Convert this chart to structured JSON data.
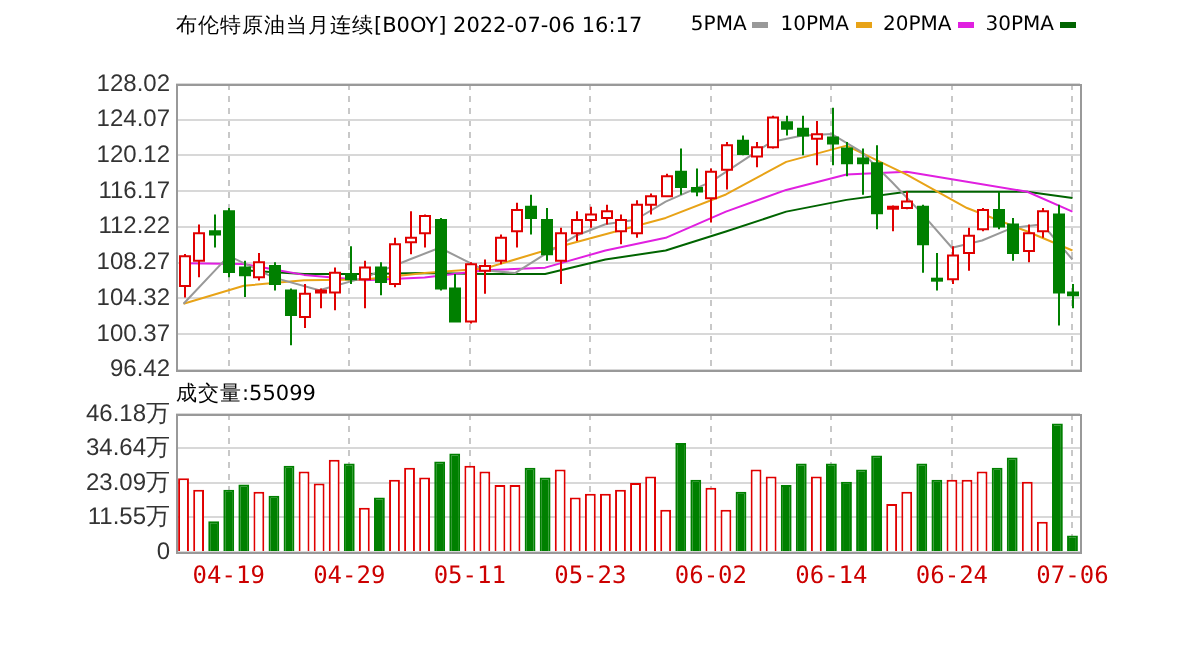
{
  "chart_data": [
    {
      "type": "candlestick",
      "title": "布伦特原油当月连续[B0OY] 2022-07-06 16:17",
      "categories": [
        null,
        null,
        null,
        null,
        null,
        null,
        null,
        null,
        null,
        null,
        null,
        null,
        null,
        null,
        null,
        null,
        null,
        null,
        null,
        null,
        null,
        null,
        null,
        null,
        null,
        null,
        null,
        null,
        null,
        null,
        null,
        null,
        null,
        null,
        null,
        null,
        null,
        null,
        null,
        null,
        null,
        null,
        null,
        null,
        null,
        null,
        null,
        null,
        null,
        null,
        null,
        null,
        null,
        null,
        null,
        null,
        null,
        null,
        null,
        null
      ],
      "ohlc": [
        [
          105.68,
          109.2,
          104.4,
          108.97
        ],
        [
          108.45,
          112.47,
          106.63,
          111.52
        ],
        [
          111.74,
          113.57,
          109.92,
          111.38
        ],
        [
          113.93,
          114.3,
          106.63,
          107.22
        ],
        [
          107.73,
          108.45,
          104.44,
          106.85
        ],
        [
          106.63,
          109.33,
          106.27,
          108.31
        ],
        [
          107.87,
          108.31,
          105.17,
          105.9
        ],
        [
          105.17,
          105.39,
          99.11,
          102.47
        ],
        [
          102.25,
          105.9,
          101.01,
          104.81
        ],
        [
          104.96,
          105.39,
          103.2,
          105.17
        ],
        [
          104.95,
          107.73,
          102.98,
          107.14
        ],
        [
          107.0,
          110.06,
          105.9,
          106.41
        ],
        [
          106.41,
          108.45,
          103.2,
          107.73
        ],
        [
          107.73,
          108.31,
          104.66,
          106.12
        ],
        [
          105.9,
          111.01,
          105.54,
          110.28
        ],
        [
          110.5,
          113.93,
          109.19,
          111.01
        ],
        [
          111.52,
          113.57,
          109.92,
          113.42
        ],
        [
          112.98,
          113.2,
          105.17,
          105.39
        ],
        [
          105.39,
          107.0,
          101.74,
          101.74
        ],
        [
          101.74,
          108.31,
          101.52,
          108.09
        ],
        [
          107.36,
          108.6,
          104.81,
          107.87
        ],
        [
          108.45,
          111.38,
          108.09,
          111.01
        ],
        [
          111.74,
          114.88,
          109.92,
          114.08
        ],
        [
          114.44,
          115.76,
          111.38,
          113.2
        ],
        [
          112.98,
          114.3,
          108.45,
          109.19
        ],
        [
          108.45,
          112.11,
          105.9,
          111.52
        ],
        [
          111.52,
          113.93,
          110.65,
          112.98
        ],
        [
          112.98,
          114.44,
          112.11,
          113.57
        ],
        [
          113.2,
          114.66,
          112.47,
          113.93
        ],
        [
          111.74,
          113.57,
          110.28,
          112.98
        ],
        [
          111.52,
          115.17,
          111.01,
          114.66
        ],
        [
          114.66,
          115.9,
          113.57,
          115.61
        ],
        [
          115.61,
          118.09,
          115.61,
          117.8
        ],
        [
          118.31,
          120.87,
          115.76,
          116.63
        ],
        [
          116.5,
          118.68,
          115.61,
          116.12
        ],
        [
          115.39,
          118.68,
          112.69,
          118.31
        ],
        [
          118.53,
          121.6,
          116.34,
          121.23
        ],
        [
          121.74,
          122.33,
          120.14,
          120.28
        ],
        [
          119.99,
          121.6,
          118.82,
          121.01
        ],
        [
          121.01,
          124.52,
          120.87,
          124.3
        ],
        [
          123.79,
          124.52,
          122.33,
          123.06
        ],
        [
          123.06,
          124.52,
          120.14,
          122.33
        ],
        [
          121.96,
          123.93,
          119.04,
          122.47
        ],
        [
          122.11,
          125.39,
          119.04,
          121.45
        ],
        [
          120.87,
          121.6,
          117.8,
          119.26
        ],
        [
          119.77,
          120.87,
          115.76,
          119.26
        ],
        [
          119.26,
          121.23,
          111.96,
          113.71
        ],
        [
          114.22,
          114.59,
          111.74,
          114.44
        ],
        [
          114.3,
          116.12,
          114.15,
          115.03
        ],
        [
          114.44,
          114.66,
          107.14,
          110.28
        ],
        [
          106.48,
          109.33,
          105.17,
          106.34
        ],
        [
          106.41,
          110.06,
          105.9,
          109.04
        ],
        [
          109.33,
          112.11,
          107.36,
          111.23
        ],
        [
          111.96,
          114.3,
          111.74,
          114.08
        ],
        [
          114.08,
          116.12,
          111.96,
          112.25
        ],
        [
          112.47,
          113.2,
          108.45,
          109.33
        ],
        [
          109.55,
          112.47,
          108.31,
          111.52
        ],
        [
          111.74,
          114.3,
          111.01,
          113.93
        ],
        [
          113.57,
          114.66,
          101.3,
          104.95
        ],
        [
          104.95,
          105.9,
          103.2,
          104.66
        ]
      ],
      "colors": [
        "#e00000",
        "#e00000",
        "#008000",
        "#008000",
        "#008000",
        "#e00000",
        "#008000",
        "#008000",
        "#e00000",
        "#e00000",
        "#e00000",
        "#008000",
        "#e00000",
        "#008000",
        "#e00000",
        "#e00000",
        "#e00000",
        "#008000",
        "#008000",
        "#e00000",
        "#e00000",
        "#e00000",
        "#e00000",
        "#008000",
        "#008000",
        "#e00000",
        "#e00000",
        "#e00000",
        "#e00000",
        "#e00000",
        "#e00000",
        "#e00000",
        "#e00000",
        "#008000",
        "#008000",
        "#e00000",
        "#e00000",
        "#008000",
        "#e00000",
        "#e00000",
        "#008000",
        "#008000",
        "#e00000",
        "#008000",
        "#008000",
        "#008000",
        "#008000",
        "#e00000",
        "#e00000",
        "#008000",
        "#008000",
        "#e00000",
        "#e00000",
        "#e00000",
        "#008000",
        "#008000",
        "#e00000",
        "#e00000",
        "#008000",
        "#008000"
      ],
      "series": [
        {
          "name": "5PMA",
          "type": "line",
          "color": "#999999",
          "values": [
            103.7,
            null,
            null,
            109.0,
            null,
            null,
            106.6,
            null,
            null,
            105.2,
            null,
            null,
            106.6,
            null,
            null,
            108.6,
            null,
            109.9,
            null,
            null,
            107.4,
            null,
            107.1,
            null,
            109.2,
            null,
            111.2,
            null,
            112.5,
            null,
            113.0,
            null,
            115.0,
            null,
            null,
            117.2,
            null,
            null,
            null,
            121.6,
            null,
            122.3,
            null,
            122.5,
            null,
            120.5,
            null,
            117.2,
            null,
            113.7,
            null,
            109.9,
            null,
            110.7,
            null,
            112.1,
            null,
            112.5,
            null,
            108.6
          ]
        },
        {
          "name": "10PMA",
          "type": "line",
          "color": "#e8a317",
          "values": [
            103.7,
            null,
            null,
            null,
            105.7,
            null,
            null,
            null,
            106.3,
            null,
            null,
            null,
            106.4,
            null,
            null,
            null,
            107.1,
            null,
            null,
            null,
            107.6,
            null,
            null,
            null,
            109.6,
            null,
            null,
            null,
            111.4,
            null,
            null,
            null,
            113.2,
            null,
            null,
            null,
            115.8,
            null,
            null,
            null,
            119.4,
            null,
            null,
            null,
            121.2,
            null,
            null,
            null,
            118.0,
            null,
            null,
            null,
            114.3,
            null,
            null,
            null,
            111.7,
            null,
            null,
            109.6
          ]
        },
        {
          "name": "20PMA",
          "type": "line",
          "color": "#e020e0",
          "values": [
            108.2,
            null,
            null,
            null,
            108.1,
            null,
            null,
            null,
            106.9,
            null,
            null,
            null,
            106.3,
            null,
            null,
            null,
            106.6,
            null,
            null,
            null,
            107.4,
            null,
            null,
            null,
            107.7,
            null,
            null,
            null,
            109.6,
            null,
            null,
            null,
            111.0,
            null,
            null,
            null,
            113.9,
            null,
            null,
            null,
            116.3,
            null,
            null,
            null,
            118.0,
            null,
            null,
            null,
            118.3,
            null,
            null,
            null,
            117.2,
            null,
            null,
            null,
            116.1,
            null,
            null,
            113.9
          ]
        },
        {
          "name": "30PMA",
          "type": "line",
          "color": "#006400",
          "values": [
            null,
            null,
            null,
            null,
            107.4,
            null,
            null,
            null,
            107.0,
            null,
            null,
            null,
            107.0,
            null,
            null,
            null,
            107.1,
            null,
            null,
            null,
            107.0,
            null,
            null,
            null,
            107.0,
            null,
            null,
            null,
            108.6,
            null,
            null,
            null,
            109.6,
            null,
            null,
            null,
            111.7,
            null,
            null,
            null,
            113.9,
            null,
            null,
            null,
            115.2,
            null,
            null,
            null,
            116.1,
            null,
            null,
            null,
            116.1,
            null,
            null,
            null,
            116.1,
            null,
            null,
            115.4
          ]
        }
      ],
      "ylim": [
        96.42,
        128.02
      ],
      "yticks": [
        96.42,
        100.37,
        104.32,
        108.27,
        112.22,
        116.17,
        120.12,
        124.07,
        128.02
      ],
      "grid": true,
      "legend": "top right",
      "tick_labels": "y",
      "marker": "none"
    },
    {
      "type": "bar",
      "title": "成交量:55099",
      "categories": [
        null,
        null,
        null,
        "04-19",
        null,
        null,
        null,
        null,
        null,
        null,
        null,
        "04-29",
        null,
        null,
        null,
        null,
        null,
        null,
        null,
        "05-11",
        null,
        null,
        null,
        null,
        null,
        null,
        null,
        "05-23",
        null,
        null,
        null,
        null,
        null,
        null,
        null,
        "06-02",
        null,
        null,
        null,
        null,
        null,
        null,
        null,
        "06-14",
        null,
        null,
        null,
        null,
        null,
        null,
        null,
        "06-24",
        null,
        null,
        null,
        null,
        null,
        null,
        null,
        "07-06"
      ],
      "values": [
        24.7,
        20.8,
        10.3,
        20.8,
        22.6,
        20.2,
        18.8,
        28.9,
        26.9,
        22.9,
        30.9,
        29.6,
        14.8,
        18.2,
        24.2,
        28.2,
        24.9,
        30.3,
        33.0,
        28.9,
        26.9,
        22.4,
        22.4,
        28.2,
        24.9,
        27.6,
        18.2,
        19.5,
        19.5,
        20.8,
        23.1,
        25.3,
        14.1,
        36.5,
        24.2,
        21.5,
        14.1,
        20.2,
        27.6,
        25.3,
        22.4,
        29.6,
        25.3,
        29.6,
        23.5,
        27.6,
        32.3,
        16.1,
        20.2,
        29.6,
        24.2,
        24.2,
        24.2,
        26.9,
        28.2,
        31.6,
        23.5,
        10.1,
        43.0,
        5.5
      ],
      "colors": [
        "#e00000",
        "#e00000",
        "#008000",
        "#008000",
        "#008000",
        "#e00000",
        "#008000",
        "#008000",
        "#e00000",
        "#e00000",
        "#e00000",
        "#008000",
        "#e00000",
        "#008000",
        "#e00000",
        "#e00000",
        "#e00000",
        "#008000",
        "#008000",
        "#e00000",
        "#e00000",
        "#e00000",
        "#e00000",
        "#008000",
        "#008000",
        "#e00000",
        "#e00000",
        "#e00000",
        "#e00000",
        "#e00000",
        "#e00000",
        "#e00000",
        "#e00000",
        "#008000",
        "#008000",
        "#e00000",
        "#e00000",
        "#008000",
        "#e00000",
        "#e00000",
        "#008000",
        "#008000",
        "#e00000",
        "#008000",
        "#008000",
        "#008000",
        "#008000",
        "#e00000",
        "#e00000",
        "#008000",
        "#008000",
        "#e00000",
        "#e00000",
        "#e00000",
        "#008000",
        "#008000",
        "#e00000",
        "#e00000",
        "#008000",
        "#008000"
      ],
      "ylim": [
        0,
        46.18
      ],
      "yticks": [
        0,
        {
          "value": 11.55,
          "label": "11.55万"
        },
        {
          "value": 23.09,
          "label": "23.09万"
        },
        {
          "value": 34.64,
          "label": "34.64万"
        },
        {
          "value": 46.18,
          "label": "46.18万"
        }
      ],
      "grid": true
    }
  ]
}
